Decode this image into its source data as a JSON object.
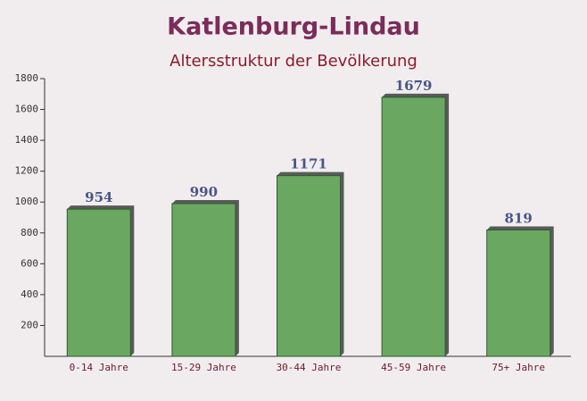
{
  "chart_data": {
    "type": "bar",
    "title": "Katlenburg-Lindau",
    "subtitle": "Altersstruktur der Bevölkerung",
    "categories": [
      "0-14 Jahre",
      "15-29 Jahre",
      "30-44 Jahre",
      "45-59 Jahre",
      "75+ Jahre"
    ],
    "values": [
      954,
      990,
      1171,
      1679,
      819
    ],
    "color": "#6aa862",
    "ylim": [
      0,
      1800
    ],
    "yticks": [
      200,
      400,
      600,
      800,
      1000,
      1200,
      1400,
      1600,
      1800
    ]
  }
}
